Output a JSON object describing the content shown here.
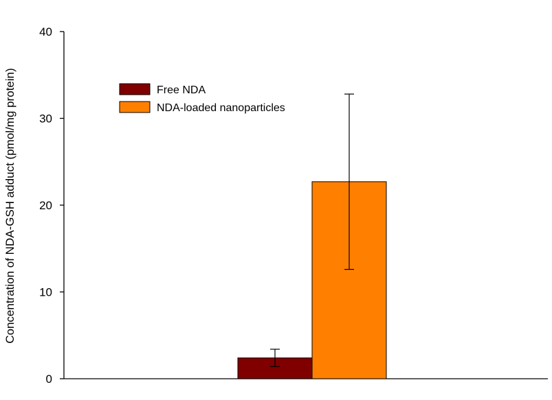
{
  "chart_data": {
    "type": "bar",
    "title": "",
    "xlabel": "",
    "ylabel": "Concentration of NDA-GSH adduct (pmol/mg protein)",
    "ylim": [
      0,
      40
    ],
    "yticks": [
      "0",
      "10",
      "20",
      "30",
      "40"
    ],
    "grid": false,
    "legend_position": "top-left",
    "series": [
      {
        "name": "Free NDA",
        "value": 2.4,
        "error": 1.0,
        "color": "#800000"
      },
      {
        "name": "NDA-loaded nanoparticles",
        "value": 22.7,
        "error": 10.1,
        "color": "#ff8000"
      }
    ]
  }
}
